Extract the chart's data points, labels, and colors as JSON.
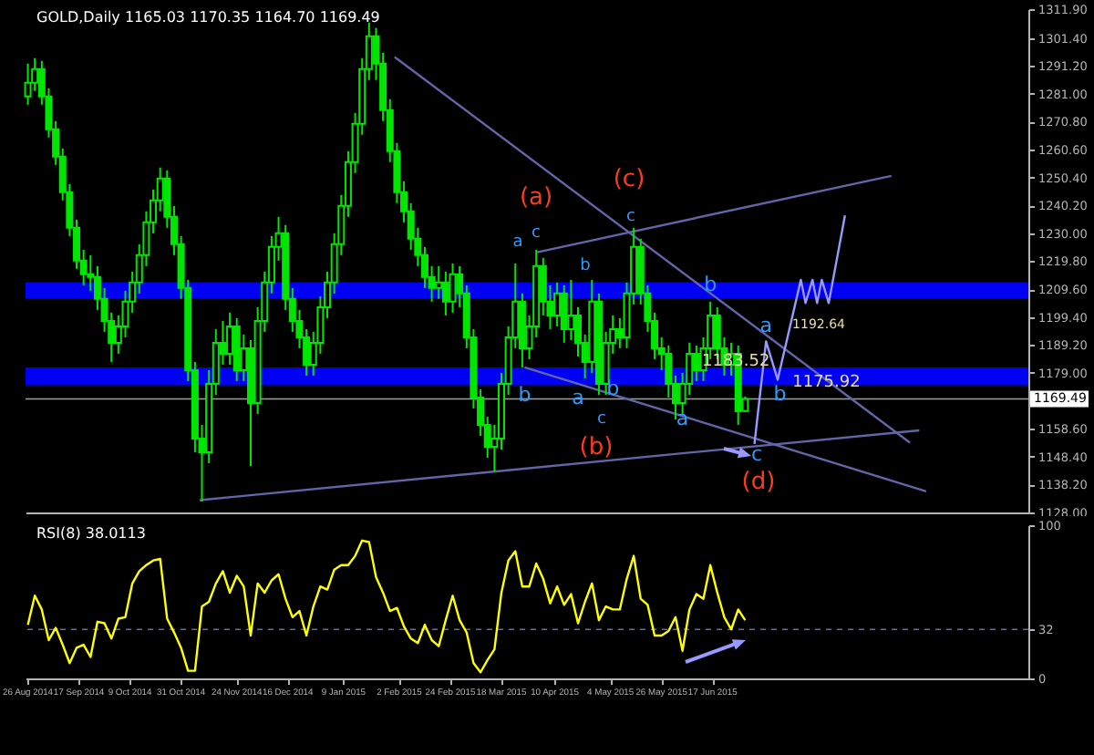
{
  "chart_data": [
    {
      "type": "candlestick",
      "title": "GOLD,Daily 1165.03 1170.35 1164.70 1169.49",
      "tick_labels": "y",
      "xlim": [
        "2014-08-25",
        "2015-10-31"
      ],
      "ylim": [
        1128,
        1311.9
      ],
      "yticks": [
        {
          "value": 1128,
          "label": "1128.00"
        },
        {
          "value": 1138.2,
          "label": "1138.20"
        },
        {
          "value": 1148.4,
          "label": "1148.40"
        },
        {
          "value": 1158.6,
          "label": "1158.60"
        },
        {
          "value": 1179,
          "label": "1179.00"
        },
        {
          "value": 1189.2,
          "label": "1189.20"
        },
        {
          "value": 1199.4,
          "label": "1199.40"
        },
        {
          "value": 1209.6,
          "label": "1209.60"
        },
        {
          "value": 1219.8,
          "label": "1219.80"
        },
        {
          "value": 1230,
          "label": "1230.00"
        },
        {
          "value": 1240.2,
          "label": "1240.20"
        },
        {
          "value": 1250.4,
          "label": "1250.40"
        },
        {
          "value": 1260.6,
          "label": "1260.60"
        },
        {
          "value": 1270.8,
          "label": "1270.80"
        },
        {
          "value": 1281,
          "label": "1281.00"
        },
        {
          "value": 1291.2,
          "label": "1291.20"
        },
        {
          "value": 1301.4,
          "label": "1301.40"
        },
        {
          "value": 1311.9,
          "label": "1311.90"
        }
      ],
      "x": [
        "2014-08-26",
        "2014-08-29",
        "2014-09-01",
        "2014-09-04",
        "2014-09-07",
        "2014-09-10",
        "2014-09-13",
        "2014-09-16",
        "2014-09-19",
        "2014-09-22",
        "2014-09-25",
        "2014-09-28",
        "2014-10-01",
        "2014-10-04",
        "2014-10-07",
        "2014-10-10",
        "2014-10-13",
        "2014-10-16",
        "2014-10-19",
        "2014-10-22",
        "2014-10-25",
        "2014-10-28",
        "2014-10-31",
        "2014-11-03",
        "2014-11-06",
        "2014-11-09",
        "2014-11-12",
        "2014-11-15",
        "2014-11-18",
        "2014-11-21",
        "2014-11-24",
        "2014-11-27",
        "2014-11-30",
        "2014-12-03",
        "2014-12-06",
        "2014-12-09",
        "2014-12-12",
        "2014-12-15",
        "2014-12-18",
        "2014-12-21",
        "2014-12-24",
        "2014-12-27",
        "2014-12-30",
        "2015-01-02",
        "2015-01-05",
        "2015-01-08",
        "2015-01-11",
        "2015-01-14",
        "2015-01-17",
        "2015-01-20",
        "2015-01-23",
        "2015-01-26",
        "2015-01-29",
        "2015-02-01",
        "2015-02-04",
        "2015-02-07",
        "2015-02-10",
        "2015-02-13",
        "2015-02-16",
        "2015-02-19",
        "2015-02-22",
        "2015-02-25",
        "2015-02-28",
        "2015-03-03",
        "2015-03-06",
        "2015-03-09",
        "2015-03-12",
        "2015-03-15",
        "2015-03-18",
        "2015-03-21",
        "2015-03-24",
        "2015-03-27",
        "2015-03-30",
        "2015-04-02",
        "2015-04-05",
        "2015-04-08",
        "2015-04-11",
        "2015-04-14",
        "2015-04-17",
        "2015-04-20",
        "2015-04-23",
        "2015-04-26",
        "2015-04-29",
        "2015-05-02",
        "2015-05-05",
        "2015-05-08",
        "2015-05-11",
        "2015-05-14",
        "2015-05-17",
        "2015-05-20",
        "2015-05-23",
        "2015-05-26",
        "2015-05-29",
        "2015-06-01",
        "2015-06-04",
        "2015-06-07",
        "2015-06-10",
        "2015-06-13",
        "2015-06-16",
        "2015-06-19",
        "2015-06-22",
        "2015-06-25",
        "2015-06-28",
        "2015-07-01"
      ],
      "series": [
        {
          "type": "candlestick",
          "color": "#00e600",
          "ohlc": [
            [
              1280,
              1292,
              1277,
              1285
            ],
            [
              1285,
              1294,
              1282,
              1290
            ],
            [
              1290,
              1293,
              1277,
              1280
            ],
            [
              1280,
              1283,
              1265,
              1268
            ],
            [
              1268,
              1271,
              1255,
              1258
            ],
            [
              1258,
              1261,
              1242,
              1245
            ],
            [
              1245,
              1248,
              1229,
              1232
            ],
            [
              1232,
              1235,
              1217,
              1220
            ],
            [
              1220,
              1224,
              1211,
              1215
            ],
            [
              1215,
              1222,
              1209,
              1214
            ],
            [
              1214,
              1218,
              1202,
              1206
            ],
            [
              1206,
              1210,
              1194,
              1198
            ],
            [
              1198,
              1201,
              1183,
              1190
            ],
            [
              1190,
              1200,
              1186,
              1196
            ],
            [
              1196,
              1209,
              1192,
              1205
            ],
            [
              1205,
              1216,
              1201,
              1212
            ],
            [
              1212,
              1226,
              1208,
              1222
            ],
            [
              1222,
              1238,
              1218,
              1234
            ],
            [
              1234,
              1246,
              1230,
              1242
            ],
            [
              1242,
              1254,
              1238,
              1250
            ],
            [
              1250,
              1253,
              1232,
              1236
            ],
            [
              1236,
              1240,
              1222,
              1226
            ],
            [
              1226,
              1229,
              1206,
              1210
            ],
            [
              1210,
              1213,
              1176,
              1180
            ],
            [
              1180,
              1183,
              1150,
              1155
            ],
            [
              1155,
              1160,
              1132,
              1150
            ],
            [
              1150,
              1180,
              1146,
              1175
            ],
            [
              1175,
              1195,
              1171,
              1190
            ],
            [
              1190,
              1198,
              1182,
              1186
            ],
            [
              1186,
              1201,
              1182,
              1196
            ],
            [
              1196,
              1199,
              1176,
              1180
            ],
            [
              1180,
              1193,
              1176,
              1188
            ],
            [
              1188,
              1191,
              1145,
              1168
            ],
            [
              1168,
              1203,
              1164,
              1198
            ],
            [
              1198,
              1216,
              1194,
              1212
            ],
            [
              1212,
              1229,
              1208,
              1225
            ],
            [
              1225,
              1236,
              1220,
              1230
            ],
            [
              1230,
              1233,
              1202,
              1206
            ],
            [
              1206,
              1210,
              1194,
              1198
            ],
            [
              1198,
              1202,
              1188,
              1192
            ],
            [
              1192,
              1195,
              1178,
              1182
            ],
            [
              1182,
              1194,
              1178,
              1190
            ],
            [
              1190,
              1207,
              1186,
              1203
            ],
            [
              1203,
              1216,
              1199,
              1212
            ],
            [
              1212,
              1230,
              1208,
              1226
            ],
            [
              1226,
              1244,
              1222,
              1240
            ],
            [
              1240,
              1260,
              1236,
              1256
            ],
            [
              1256,
              1274,
              1252,
              1270
            ],
            [
              1270,
              1294,
              1266,
              1290
            ],
            [
              1290,
              1307,
              1286,
              1302
            ],
            [
              1302,
              1305,
              1286,
              1292
            ],
            [
              1292,
              1296,
              1271,
              1275
            ],
            [
              1275,
              1279,
              1256,
              1260
            ],
            [
              1260,
              1263,
              1241,
              1245
            ],
            [
              1245,
              1249,
              1234,
              1238
            ],
            [
              1238,
              1241,
              1224,
              1228
            ],
            [
              1228,
              1232,
              1218,
              1222
            ],
            [
              1222,
              1225,
              1210,
              1214
            ],
            [
              1214,
              1218,
              1205,
              1210
            ],
            [
              1210,
              1218,
              1206,
              1212
            ],
            [
              1212,
              1216,
              1200,
              1205
            ],
            [
              1205,
              1219,
              1201,
              1215
            ],
            [
              1215,
              1218,
              1203,
              1208
            ],
            [
              1208,
              1211,
              1188,
              1192
            ],
            [
              1192,
              1195,
              1166,
              1170
            ],
            [
              1170,
              1173,
              1156,
              1160
            ],
            [
              1160,
              1163,
              1148,
              1152
            ],
            [
              1152,
              1160,
              1143,
              1155
            ],
            [
              1155,
              1179,
              1151,
              1175
            ],
            [
              1175,
              1196,
              1171,
              1192
            ],
            [
              1192,
              1219,
              1188,
              1205
            ],
            [
              1205,
              1208,
              1181,
              1188
            ],
            [
              1188,
              1200,
              1184,
              1196
            ],
            [
              1196,
              1224,
              1192,
              1218
            ],
            [
              1218,
              1221,
              1200,
              1205
            ],
            [
              1205,
              1211,
              1195,
              1200
            ],
            [
              1200,
              1212,
              1196,
              1208
            ],
            [
              1208,
              1211,
              1190,
              1195
            ],
            [
              1195,
              1213,
              1191,
              1200
            ],
            [
              1200,
              1203,
              1185,
              1190
            ],
            [
              1190,
              1193,
              1177,
              1183
            ],
            [
              1183,
              1213,
              1179,
              1205
            ],
            [
              1205,
              1208,
              1171,
              1175
            ],
            [
              1175,
              1194,
              1171,
              1190
            ],
            [
              1190,
              1200,
              1186,
              1195
            ],
            [
              1195,
              1199,
              1188,
              1192
            ],
            [
              1192,
              1212,
              1188,
              1208
            ],
            [
              1208,
              1232,
              1204,
              1225
            ],
            [
              1225,
              1228,
              1204,
              1208
            ],
            [
              1208,
              1211,
              1194,
              1198
            ],
            [
              1198,
              1201,
              1184,
              1188
            ],
            [
              1188,
              1192,
              1180,
              1186
            ],
            [
              1186,
              1189,
              1170,
              1175
            ],
            [
              1175,
              1178,
              1162,
              1168
            ],
            [
              1168,
              1179,
              1164,
              1175
            ],
            [
              1175,
              1190,
              1171,
              1186
            ],
            [
              1186,
              1189,
              1176,
              1180
            ],
            [
              1180,
              1192,
              1176,
              1188
            ],
            [
              1188,
              1205,
              1184,
              1200
            ],
            [
              1200,
              1203,
              1184,
              1188
            ],
            [
              1188,
              1192,
              1178,
              1182
            ],
            [
              1182,
              1190,
              1178,
              1186
            ],
            [
              1186,
              1189,
              1160,
              1165
            ],
            [
              1165.03,
              1170.35,
              1164.7,
              1169.49
            ]
          ]
        },
        {
          "type": "line",
          "color": "#6464a8",
          "x": [
            "2015-01-31",
            "2015-09-10"
          ],
          "values": [
            1294.4,
            1153.5
          ]
        },
        {
          "type": "line",
          "color": "#6464a8",
          "x": [
            "2014-11-08",
            "2015-09-14"
          ],
          "values": [
            1132.5,
            1158
          ]
        },
        {
          "type": "line",
          "color": "#6464a8",
          "x": [
            "2015-04-02",
            "2015-09-02"
          ],
          "values": [
            1223,
            1251
          ]
        },
        {
          "type": "line",
          "color": "#6464a8",
          "x": [
            "2015-03-28",
            "2015-09-17"
          ],
          "values": [
            1181,
            1135.7
          ]
        },
        {
          "type": "line",
          "color": "#9999ff",
          "x": [
            "2015-07-05",
            "2015-07-10",
            "2015-07-15",
            "2015-07-25",
            "2015-07-27",
            "2015-07-30",
            "2015-08-01",
            "2015-08-03",
            "2015-08-06",
            "2015-08-13"
          ],
          "values": [
            1153,
            1190.5,
            1176.5,
            1213,
            1204.5,
            1213,
            1204.5,
            1213,
            1204.5,
            1236.5
          ]
        }
      ],
      "bands": [
        {
          "axis": "y",
          "from": 1174.5,
          "to": 1181,
          "color": "#0000ff"
        },
        {
          "axis": "y",
          "from": 1206.3,
          "to": 1212.1,
          "color": "#0000ff"
        }
      ],
      "ref_lines": [
        {
          "axis": "y",
          "value": 1169.49,
          "label": "1169.49",
          "color": "#a0a0a0"
        }
      ],
      "annotations": [
        "(a)",
        "(c)",
        "(b)",
        "(d)",
        "a",
        "c",
        "b",
        "c",
        {
          "text": "b",
          "x": "2015-06-16",
          "y": 1211
        },
        {
          "text": "b",
          "x": "2015-03-28",
          "y": 1170.5
        },
        {
          "text": "a",
          "x": "2015-04-20",
          "y": 1169.5
        },
        "c",
        {
          "text": "b",
          "x": "2015-05-05",
          "y": 1173
        },
        {
          "text": "a",
          "x": "2015-06-04",
          "y": 1162
        },
        {
          "text": "a",
          "x": "2015-07-10",
          "y": 1196
        },
        {
          "text": "b",
          "x": "2015-07-16",
          "y": 1171
        },
        {
          "text": "c",
          "x": "2015-07-06",
          "y": 1149
        },
        "1192.64",
        {
          "text": "1183.52",
          "x": "2015-06-27",
          "y": 1183.52
        },
        {
          "text": "1175.92",
          "x": "2015-08-05",
          "y": 1175.92
        }
      ]
    },
    {
      "type": "line",
      "title": "RSI(8) 38.0113",
      "xlim": [
        "2014-08-25",
        "2015-10-31"
      ],
      "ylim": [
        0,
        100
      ],
      "yticks": [
        0,
        32,
        100
      ],
      "xticks": [
        {
          "value": "2014-08-26",
          "label": "26 Aug 2014"
        },
        {
          "value": "2014-09-17",
          "label": "17 Sep 2014"
        },
        {
          "value": "2014-10-09",
          "label": "9 Oct 2014"
        },
        {
          "value": "2014-10-31",
          "label": "31 Oct 2014"
        },
        {
          "value": "2014-11-24",
          "label": "24 Nov 2014"
        },
        {
          "value": "2014-12-16",
          "label": "16 Dec 2014"
        },
        {
          "value": "2015-01-09",
          "label": "9 Jan 2015"
        },
        {
          "value": "2015-02-02",
          "label": "2 Feb 2015"
        },
        {
          "value": "2015-02-24",
          "label": "24 Feb 2015"
        },
        {
          "value": "2015-03-18",
          "label": "18 Mar 2015"
        },
        {
          "value": "2015-04-10",
          "label": "10 Apr 2015"
        },
        {
          "value": "2015-05-04",
          "label": "4 May 2015"
        },
        {
          "value": "2015-05-26",
          "label": "26 May 2015"
        },
        {
          "value": "2015-06-17",
          "label": "17 Jun 2015"
        }
      ],
      "x": [
        "2014-08-26",
        "2014-08-29",
        "2014-09-01",
        "2014-09-04",
        "2014-09-07",
        "2014-09-10",
        "2014-09-13",
        "2014-09-16",
        "2014-09-19",
        "2014-09-22",
        "2014-09-25",
        "2014-09-28",
        "2014-10-01",
        "2014-10-04",
        "2014-10-07",
        "2014-10-10",
        "2014-10-13",
        "2014-10-16",
        "2014-10-19",
        "2014-10-22",
        "2014-10-25",
        "2014-10-28",
        "2014-10-31",
        "2014-11-03",
        "2014-11-06",
        "2014-11-09",
        "2014-11-12",
        "2014-11-15",
        "2014-11-18",
        "2014-11-21",
        "2014-11-24",
        "2014-11-27",
        "2014-11-30",
        "2014-12-03",
        "2014-12-06",
        "2014-12-09",
        "2014-12-12",
        "2014-12-15",
        "2014-12-18",
        "2014-12-21",
        "2014-12-24",
        "2014-12-27",
        "2014-12-30",
        "2015-01-02",
        "2015-01-05",
        "2015-01-08",
        "2015-01-11",
        "2015-01-14",
        "2015-01-17",
        "2015-01-20",
        "2015-01-23",
        "2015-01-26",
        "2015-01-29",
        "2015-02-01",
        "2015-02-04",
        "2015-02-07",
        "2015-02-10",
        "2015-02-13",
        "2015-02-16",
        "2015-02-19",
        "2015-02-22",
        "2015-02-25",
        "2015-02-28",
        "2015-03-03",
        "2015-03-06",
        "2015-03-09",
        "2015-03-12",
        "2015-03-15",
        "2015-03-18",
        "2015-03-21",
        "2015-03-24",
        "2015-03-27",
        "2015-03-30",
        "2015-04-02",
        "2015-04-05",
        "2015-04-08",
        "2015-04-11",
        "2015-04-14",
        "2015-04-17",
        "2015-04-20",
        "2015-04-23",
        "2015-04-26",
        "2015-04-29",
        "2015-05-02",
        "2015-05-05",
        "2015-05-08",
        "2015-05-11",
        "2015-05-14",
        "2015-05-17",
        "2015-05-20",
        "2015-05-23",
        "2015-05-26",
        "2015-05-29",
        "2015-06-01",
        "2015-06-04",
        "2015-06-07",
        "2015-06-10",
        "2015-06-13",
        "2015-06-16",
        "2015-06-19",
        "2015-06-22",
        "2015-06-25",
        "2015-06-28",
        "2015-07-01"
      ],
      "series": [
        {
          "color": "#ffff00",
          "values": [
            35,
            54,
            45,
            25,
            33,
            22,
            10,
            20,
            22,
            14,
            37,
            36,
            26,
            39,
            40,
            62,
            70,
            74,
            77,
            78,
            39,
            30,
            20,
            5,
            5,
            47,
            50,
            62,
            70,
            56,
            67,
            60,
            28,
            62,
            56,
            64,
            68,
            52,
            40,
            44,
            28,
            47,
            60,
            58,
            71,
            74,
            74,
            80,
            90,
            89,
            66,
            56,
            44,
            46,
            34,
            26,
            23,
            35,
            25,
            21,
            38,
            54,
            38,
            30,
            10,
            4,
            12,
            19,
            56,
            77,
            83,
            60,
            60,
            75,
            65,
            49,
            60,
            48,
            55,
            36,
            50,
            62,
            38,
            47,
            45,
            45,
            65,
            80,
            52,
            48,
            28,
            28,
            31,
            40,
            18,
            45,
            55,
            52,
            74,
            56,
            40,
            32,
            45,
            38
          ]
        }
      ],
      "ref_lines": [
        {
          "axis": "y",
          "value": 32,
          "line_style": "dashed",
          "color": "#6a6a8a"
        }
      ]
    }
  ]
}
